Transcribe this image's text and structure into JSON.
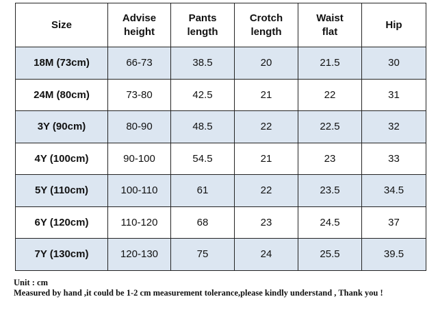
{
  "table": {
    "header": [
      "Size",
      "Advise\nheight",
      "Pants\nlength",
      "Crotch\nlength",
      "Waist\nflat",
      "Hip"
    ],
    "rows": [
      [
        "18M (73cm)",
        "66-73",
        "38.5",
        "20",
        "21.5",
        "30"
      ],
      [
        "24M (80cm)",
        "73-80",
        "42.5",
        "21",
        "22",
        "31"
      ],
      [
        "3Y (90cm)",
        "80-90",
        "48.5",
        "22",
        "22.5",
        "32"
      ],
      [
        "4Y (100cm)",
        "90-100",
        "54.5",
        "21",
        "23",
        "33"
      ],
      [
        "5Y (110cm)",
        "100-110",
        "61",
        "22",
        "23.5",
        "34.5"
      ],
      [
        "6Y (120cm)",
        "110-120",
        "68",
        "23",
        "24.5",
        "37"
      ],
      [
        "7Y (130cm)",
        "120-130",
        "75",
        "24",
        "25.5",
        "39.5"
      ]
    ]
  },
  "notes": [
    "Unit : cm",
    "Measured by hand ,it could be 1-2 cm measurement tolerance,please kindly understand , Thank you !"
  ]
}
